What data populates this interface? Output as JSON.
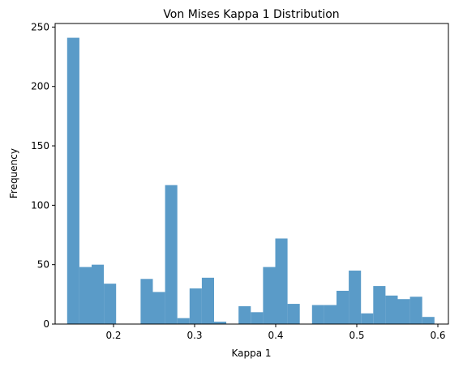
{
  "chart_data": {
    "type": "bar",
    "title": "Von Mises Kappa 1 Distribution",
    "xlabel": "Kappa 1",
    "ylabel": "Frequency",
    "xlim": [
      0.128,
      0.613
    ],
    "ylim": [
      0,
      253
    ],
    "xticks": [
      0.2,
      0.3,
      0.4,
      0.5,
      0.6
    ],
    "xtick_labels": [
      "0.2",
      "0.3",
      "0.4",
      "0.5",
      "0.6"
    ],
    "yticks": [
      0,
      50,
      100,
      150,
      200,
      250
    ],
    "ytick_labels": [
      "0",
      "50",
      "100",
      "150",
      "200",
      "250"
    ],
    "bar_color": "#5a9bc8",
    "bin_edges": [
      0.1428,
      0.1579,
      0.173,
      0.1881,
      0.2032,
      0.2183,
      0.2334,
      0.2485,
      0.2636,
      0.2787,
      0.2938,
      0.3089,
      0.324,
      0.3391,
      0.3542,
      0.3693,
      0.3844,
      0.3995,
      0.4146,
      0.4297,
      0.4448,
      0.4599,
      0.475,
      0.4901,
      0.5052,
      0.5203,
      0.5354,
      0.5505,
      0.5656,
      0.5807,
      0.5958
    ],
    "values": [
      241,
      48,
      50,
      34,
      0,
      0,
      38,
      27,
      117,
      5,
      30,
      39,
      2,
      0,
      15,
      10,
      48,
      72,
      17,
      0,
      16,
      16,
      28,
      45,
      9,
      32,
      24,
      21,
      23,
      6
    ]
  }
}
